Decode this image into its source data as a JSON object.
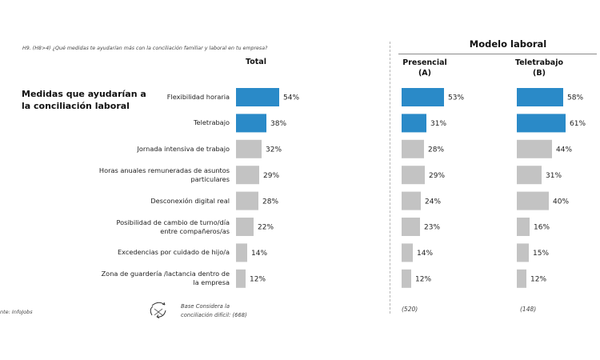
{
  "question": "H9. (H8>4) ¿Qué medidas te ayudarían más con la conciliación familiar y laboral en tu empresa?",
  "section_title": "Medidas que ayudarían a la conciliación laboral",
  "source": "nte: InfoJobs",
  "base_note": {
    "line1": "Base Considera la",
    "line2": "conciliación difícil: (668)"
  },
  "model_title": "Modelo laboral",
  "colors": {
    "highlight": "#2a8ac8",
    "other": "#c3c3c3"
  },
  "chart_data": {
    "type": "bar",
    "orientation": "horizontal",
    "categories": [
      "Flexibilidad horaria",
      "Teletrabajo",
      "Jornada intensiva de trabajo",
      "Horas anuales remuneradas de asuntos particulares",
      "Desconexión digital real",
      "Posibilidad de cambio de turno/día entre compañeros/as",
      "Excedencias por cuidado de hijo/a",
      "Zona de guardería /lactancia dentro de la empresa"
    ],
    "category_lines": [
      [
        "Flexibilidad horaria"
      ],
      [
        "Teletrabajo"
      ],
      [
        "Jornada intensiva de trabajo"
      ],
      [
        "Horas anuales remuneradas de asuntos",
        "particulares"
      ],
      [
        "Desconexión digital real"
      ],
      [
        "Posibilidad de cambio de turno/día",
        "entre compañeros/as"
      ],
      [
        "Excedencias por cuidado de hijo/a"
      ],
      [
        "Zona de guardería /lactancia dentro de",
        "la empresa"
      ]
    ],
    "highlighted": [
      true,
      true,
      false,
      false,
      false,
      false,
      false,
      false
    ],
    "series": [
      {
        "name": "Total",
        "values": [
          54,
          38,
          32,
          29,
          28,
          22,
          14,
          12
        ]
      },
      {
        "name": "Presencial (A)",
        "header": [
          "Presencial",
          "(A)"
        ],
        "n": "(520)",
        "values": [
          53,
          31,
          28,
          29,
          24,
          23,
          14,
          12
        ]
      },
      {
        "name": "Teletrabajo (B)",
        "header": [
          "Teletrabajo",
          "(B)"
        ],
        "n": "(148)",
        "values": [
          58,
          61,
          44,
          31,
          40,
          16,
          15,
          12
        ]
      }
    ],
    "value_suffix": "%",
    "xlim": [
      0,
      100
    ]
  }
}
